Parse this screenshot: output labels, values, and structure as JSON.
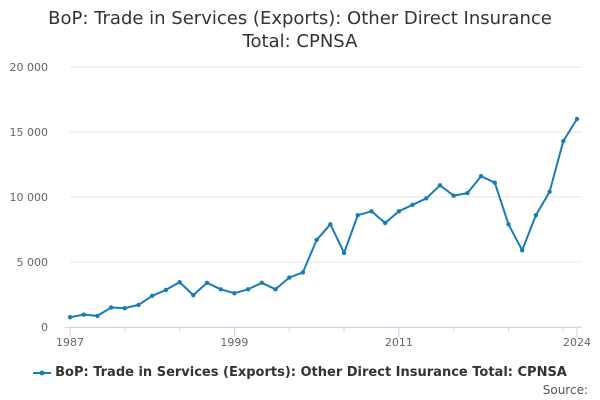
{
  "colors": {
    "series": "#1a7cb6",
    "grid": "#e6e6e6",
    "axis": "#ccd6eb",
    "text": "#666666"
  },
  "chart_data": {
    "type": "line",
    "title_lines": [
      "BoP: Trade in Services (Exports): Other Direct Insurance",
      "Total: CPNSA"
    ],
    "xlabel": "",
    "ylabel": "",
    "x_ticks": [
      1987,
      1999,
      2011,
      2024
    ],
    "x_tick_labels": [
      "1987",
      "1999",
      "2011",
      "2024"
    ],
    "xlim": [
      1987,
      2024
    ],
    "y_ticks": [
      0,
      5000,
      10000,
      15000,
      20000
    ],
    "y_tick_labels": [
      "0",
      "5 000",
      "10 000",
      "15 000",
      "20 000"
    ],
    "ylim": [
      0,
      20000
    ],
    "grid": true,
    "legend_position": "bottom",
    "credits": "Source:",
    "series": [
      {
        "name": "BoP: Trade in Services (Exports): Other Direct Insurance Total: CPNSA",
        "x": [
          1987,
          1988,
          1989,
          1990,
          1991,
          1992,
          1993,
          1994,
          1995,
          1996,
          1997,
          1998,
          1999,
          2000,
          2001,
          2002,
          2003,
          2004,
          2005,
          2006,
          2007,
          2008,
          2009,
          2010,
          2011,
          2012,
          2013,
          2014,
          2015,
          2016,
          2017,
          2018,
          2019,
          2020,
          2021,
          2022,
          2023,
          2024
        ],
        "values": [
          750,
          950,
          850,
          1500,
          1450,
          1700,
          2400,
          2850,
          3450,
          2450,
          3400,
          2900,
          2600,
          2900,
          3400,
          2900,
          3800,
          4200,
          6700,
          7900,
          5700,
          8600,
          8900,
          8000,
          8900,
          9400,
          9900,
          10900,
          10100,
          10300,
          11600,
          11100,
          7900,
          5900,
          8600,
          10400,
          14300,
          16000
        ]
      }
    ]
  }
}
